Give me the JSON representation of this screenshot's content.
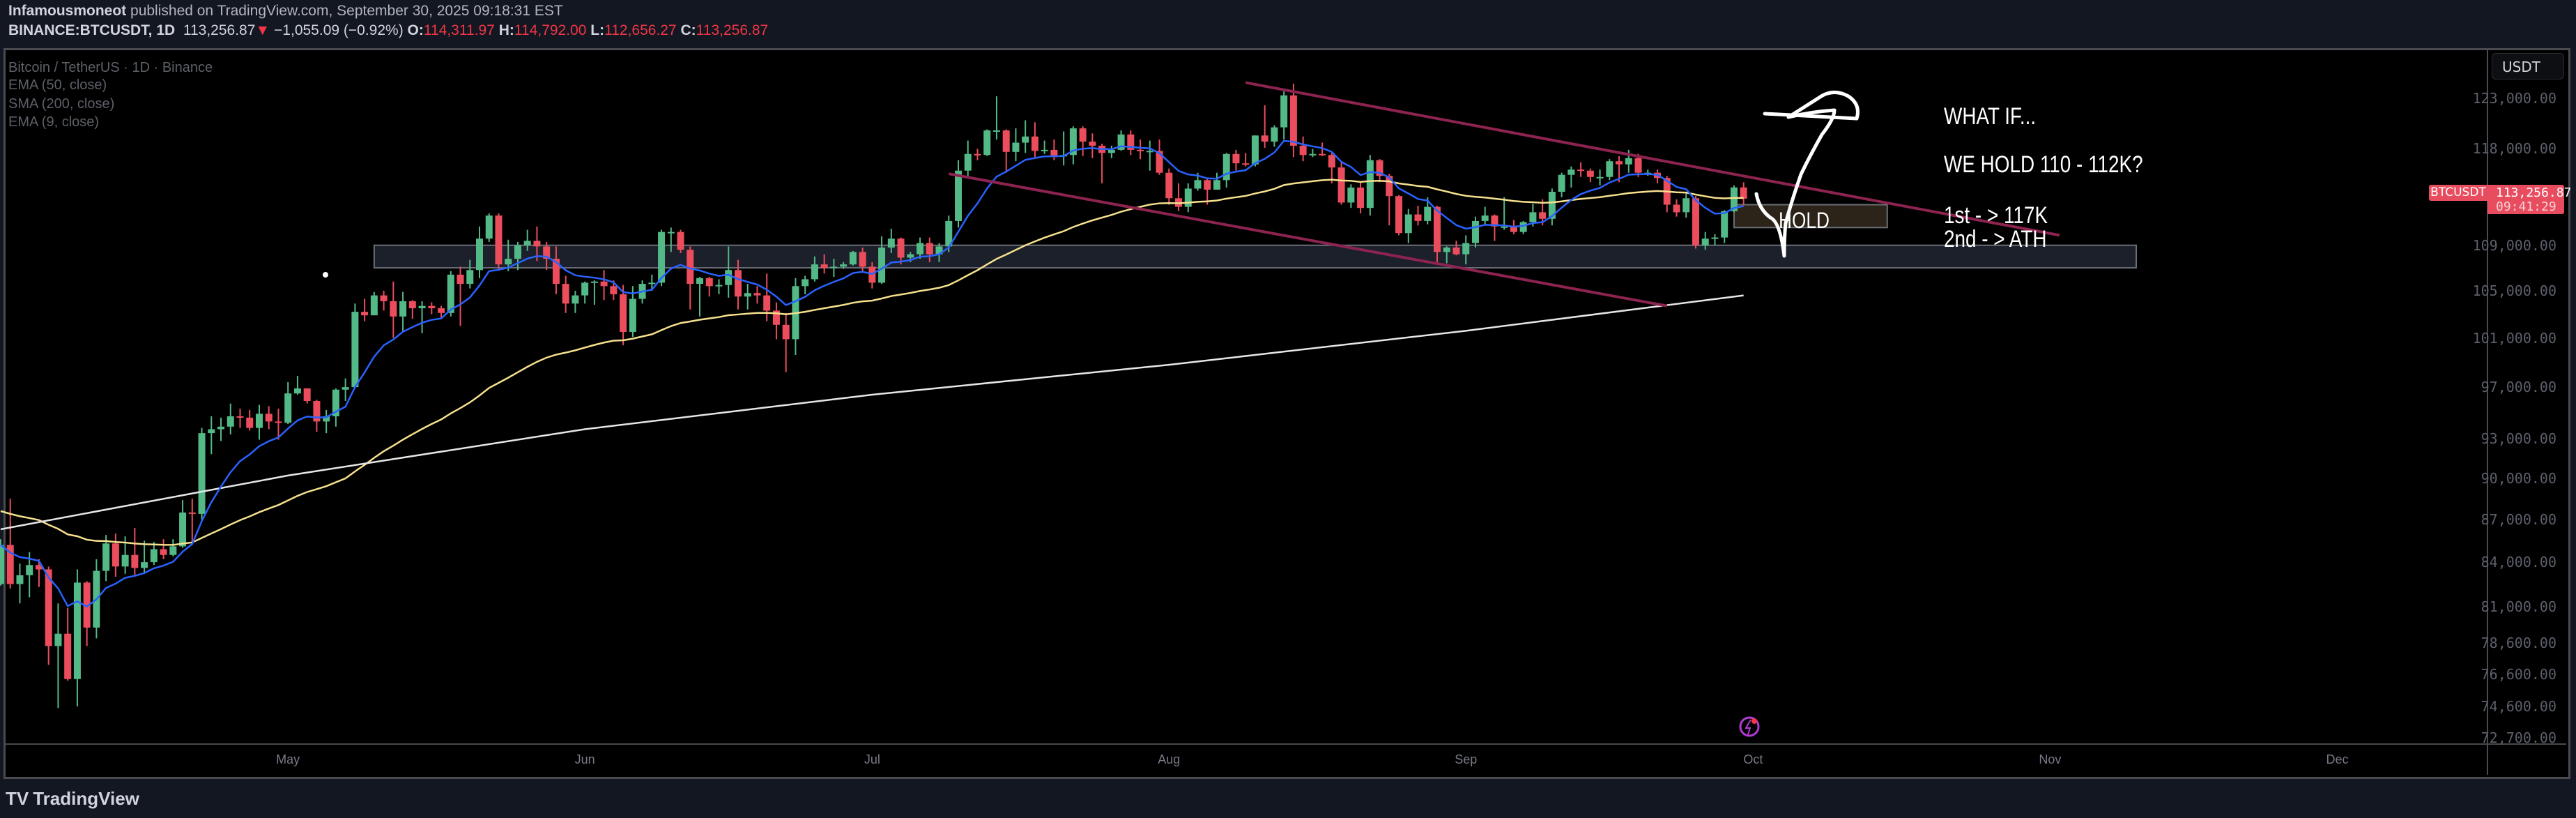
{
  "header": {
    "author": "Infamousmoneot",
    "published": "published on TradingView.com, September 30, 2025 09:18:31 EST",
    "symbol": "BINANCE:BTCUSDT, 1D",
    "last": "113,256.87",
    "change": "−1,055.09 (−0.92%)",
    "o_label": "O:",
    "o": "114,311.97",
    "h_label": "H:",
    "h": "114,792.00",
    "l_label": "L:",
    "l": "112,656.27",
    "c_label": "C:",
    "c": "113,256.87"
  },
  "legend": {
    "title": "Bitcoin / TetherUS · 1D · Binance",
    "ema50": "EMA (50, close)",
    "sma200": "SMA (200, close)",
    "ema9": "EMA (9, close)"
  },
  "price_axis": {
    "currency": "USDT",
    "ticks": [
      "123,000.00",
      "118,000.00",
      "109,000.00",
      "105,000.00",
      "101,000.00",
      "97,000.00",
      "93,000.00",
      "90,000.00",
      "87,000.00",
      "84,000.00",
      "81,000.00",
      "78,600.00",
      "76,600.00",
      "74,600.00",
      "72,700.00"
    ],
    "tick_values": [
      123000,
      118000,
      109000,
      105000,
      101000,
      97000,
      93000,
      90000,
      87000,
      84000,
      81000,
      78600,
      76600,
      74600,
      72700
    ],
    "scale": "log",
    "current_symbol": "BTCUSDT",
    "current_price": "113,256.87",
    "current_value": 113256.87,
    "countdown": "09:41:29"
  },
  "time_axis": {
    "labels": [
      "May",
      "Jun",
      "Jul",
      "Aug",
      "Sep",
      "Oct",
      "Nov",
      "Dec"
    ],
    "dates": [
      "2025-05-01",
      "2025-06-01",
      "2025-07-01",
      "2025-08-01",
      "2025-09-01",
      "2025-10-01",
      "2025-11-01",
      "2025-12-01"
    ]
  },
  "annotations": {
    "what_if": "WHAT IF...",
    "hold_question": "WE HOLD 110 - 112K?",
    "target1": "1st - > 117K",
    "target2": "2nd - > ATH",
    "hold_label": "HOLD"
  },
  "footer": {
    "logo": "TradingView",
    "logo_mark": "TV"
  },
  "colors": {
    "up": "#53b987",
    "down": "#eb4d5c",
    "ema9": "#2962ff",
    "ema50": "#f5e08e",
    "sma200": "#e6e6e6",
    "channel": "#8c2350",
    "zone_fill": "#1b202a",
    "hold_fill": "#2c2419",
    "current_price": "#e84d5f"
  },
  "chart_data": {
    "type": "candlestick",
    "interval": "1D",
    "start_date": "2025-04-01",
    "first_open": 82500,
    "close": [
      85200,
      82500,
      83100,
      83800,
      83500,
      78400,
      79200,
      76300,
      82600,
      79600,
      83400,
      85300,
      83700,
      84500,
      83600,
      84000,
      84900,
      84500,
      85100,
      87500,
      87400,
      93400,
      93700,
      93900,
      94700,
      94600,
      93800,
      94900,
      94300,
      94200,
      96500,
      96900,
      95900,
      94300,
      94700,
      96800,
      97000,
      103200,
      102900,
      104600,
      104100,
      102800,
      104100,
      103500,
      103700,
      103500,
      103100,
      106400,
      105600,
      106800,
      109600,
      111700,
      107300,
      107800,
      109000,
      109400,
      108900,
      107800,
      105600,
      103900,
      104600,
      105700,
      105800,
      105400,
      104700,
      101500,
      104300,
      105600,
      105700,
      110200,
      110200,
      108600,
      105600,
      106100,
      105400,
      105500,
      106800,
      104500,
      104800,
      104600,
      103300,
      102100,
      100900,
      105400,
      106000,
      107300,
      107000,
      107100,
      107300,
      108400,
      107100,
      105700,
      108800,
      109600,
      107900,
      108200,
      109200,
      108200,
      108900,
      111200,
      115900,
      117500,
      117400,
      119800,
      119800,
      117700,
      118600,
      119200,
      117800,
      117900,
      117300,
      117400,
      120000,
      118700,
      118300,
      117600,
      117900,
      119400,
      117900,
      117800,
      117800,
      115700,
      113300,
      112500,
      114200,
      115000,
      114100,
      115000,
      117500,
      116600,
      116500,
      119300,
      118700,
      120100,
      123300,
      118300,
      117400,
      117500,
      117400,
      116200,
      112900,
      114300,
      112400,
      116900,
      115400,
      113500,
      110100,
      111800,
      111200,
      112500,
      108400,
      108800,
      108200,
      109200,
      111200,
      111700,
      110700,
      110700,
      110200,
      111100,
      112000,
      111400,
      113900,
      115500,
      116000,
      115900,
      115300,
      115300,
      116800,
      116500,
      117100,
      115700,
      115700,
      115200,
      112700,
      112000,
      113300,
      109000,
      109600,
      109700,
      112100,
      114312,
      113257
    ],
    "high": [
      85600,
      88500,
      83900,
      84700,
      84200,
      83700,
      81200,
      80900,
      83500,
      82700,
      84200,
      85900,
      86000,
      85800,
      86400,
      85500,
      85400,
      85600,
      85600,
      88400,
      88500,
      93800,
      94700,
      94600,
      95700,
      95300,
      95200,
      95600,
      95500,
      95300,
      97400,
      97900,
      96900,
      96000,
      95200,
      96900,
      97700,
      103900,
      104300,
      104900,
      105000,
      105800,
      104900,
      104200,
      104100,
      104000,
      103700,
      106700,
      107100,
      107700,
      110700,
      111900,
      111900,
      109500,
      109300,
      110400,
      110700,
      109300,
      108900,
      106300,
      105000,
      105800,
      105900,
      106800,
      105900,
      105500,
      105400,
      105900,
      106400,
      110400,
      110600,
      110400,
      108900,
      106200,
      106200,
      106000,
      108900,
      107700,
      105600,
      105400,
      106500,
      104000,
      103100,
      106100,
      106300,
      108000,
      108200,
      107800,
      107500,
      108500,
      108800,
      107500,
      109800,
      110500,
      109700,
      108400,
      109700,
      109700,
      109200,
      111700,
      116900,
      118800,
      118000,
      119900,
      123200,
      119900,
      120000,
      120800,
      120600,
      118800,
      118900,
      119700,
      120200,
      120200,
      119500,
      118500,
      118300,
      119800,
      119800,
      118900,
      118800,
      118900,
      116100,
      114700,
      114700,
      115700,
      115100,
      115700,
      117600,
      117900,
      117600,
      119300,
      122300,
      120300,
      123700,
      124500,
      119200,
      118000,
      118600,
      117600,
      116800,
      114600,
      114800,
      117400,
      117000,
      115600,
      113600,
      112300,
      112600,
      113400,
      112600,
      108900,
      109400,
      109900,
      111600,
      112500,
      111800,
      113400,
      111300,
      111200,
      112800,
      113200,
      114200,
      115700,
      116300,
      116700,
      116100,
      116000,
      117000,
      117300,
      117900,
      117500,
      116000,
      116000,
      115400,
      113200,
      113900,
      113500,
      110200,
      110000,
      112200,
      114500,
      114792
    ],
    "low": [
      82400,
      82200,
      81200,
      81600,
      82300,
      77200,
      74500,
      76200,
      74600,
      78400,
      78900,
      82700,
      83000,
      83200,
      83100,
      83200,
      83800,
      84200,
      84400,
      85000,
      85200,
      87000,
      91800,
      92800,
      93300,
      93800,
      93600,
      92900,
      93700,
      92900,
      94100,
      96400,
      95700,
      93500,
      93400,
      93900,
      95900,
      97000,
      102400,
      102900,
      103300,
      101000,
      101500,
      102600,
      101400,
      103000,
      102700,
      102800,
      102000,
      105200,
      106100,
      109300,
      106800,
      106700,
      106800,
      108500,
      107600,
      106800,
      104700,
      103100,
      103100,
      103900,
      103800,
      104200,
      104200,
      100400,
      101100,
      103900,
      105000,
      105400,
      108400,
      108300,
      103400,
      102800,
      104500,
      104700,
      104400,
      103400,
      103400,
      103900,
      102400,
      100900,
      98200,
      99600,
      104700,
      105800,
      106500,
      106200,
      106900,
      107200,
      106700,
      105200,
      105600,
      108300,
      107300,
      107500,
      107800,
      107500,
      107500,
      108400,
      110600,
      115200,
      116900,
      117300,
      118900,
      115700,
      116800,
      117600,
      117100,
      117500,
      116900,
      116400,
      116500,
      117300,
      117100,
      114700,
      117100,
      117800,
      117400,
      117000,
      115900,
      115500,
      112700,
      112100,
      112000,
      114000,
      112700,
      114200,
      114300,
      115900,
      116300,
      116300,
      118100,
      118200,
      118900,
      117200,
      116800,
      117200,
      117300,
      114700,
      112700,
      112400,
      111900,
      111700,
      114800,
      110800,
      109900,
      109200,
      110800,
      110900,
      107500,
      107400,
      108100,
      107300,
      108800,
      110800,
      109400,
      110400,
      110000,
      110000,
      110700,
      110800,
      110800,
      113400,
      114300,
      115300,
      114800,
      114500,
      115000,
      114800,
      115700,
      115300,
      115400,
      114700,
      112000,
      111600,
      111500,
      108700,
      108600,
      109000,
      109200,
      112000,
      112656
    ],
    "ema50_start": 87700,
    "sma200_points": [
      [
        "2025-04-01",
        86300
      ],
      [
        "2025-05-01",
        90200
      ],
      [
        "2025-06-01",
        93700
      ],
      [
        "2025-07-01",
        96400
      ],
      [
        "2025-08-01",
        98800
      ],
      [
        "2025-09-01",
        101600
      ],
      [
        "2025-09-30",
        104600
      ]
    ],
    "drawings": {
      "support_zone": {
        "from": "2025-05-10",
        "to": "2025-11-10",
        "low": 107000,
        "high": 109000
      },
      "hold_zone": {
        "from": "2025-09-29",
        "to": "2025-10-15",
        "low": 110600,
        "high": 112700
      },
      "channel_upper": [
        [
          "2025-08-09",
          124600
        ],
        [
          "2025-11-02",
          109900
        ]
      ],
      "channel_lower": [
        [
          "2025-07-09",
          115600
        ],
        [
          "2025-09-22",
          103700
        ]
      ]
    }
  }
}
